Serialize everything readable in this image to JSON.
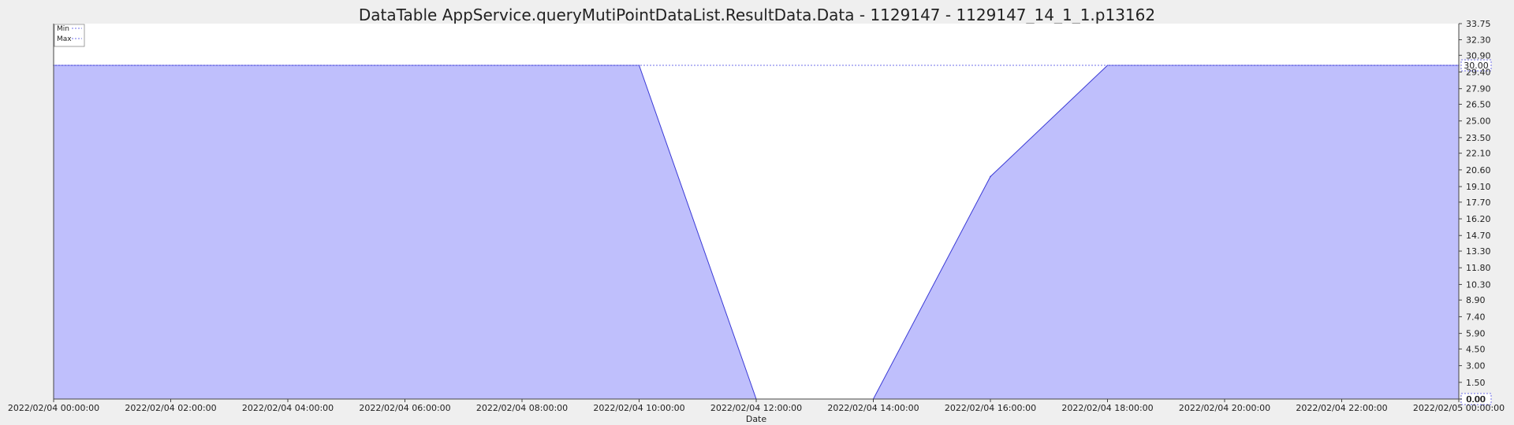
{
  "chart_data": {
    "type": "area",
    "title": "DataTable AppService.queryMutiPointDataList.ResultData.Data - 1129147 - 1129147_14_1_1.p13162",
    "xlabel": "Date",
    "ylabel": "",
    "x_hours": [
      0,
      10,
      12,
      14,
      16,
      18,
      24
    ],
    "values": [
      30.0,
      30.0,
      0.0,
      0.0,
      20.0,
      30.0,
      30.0
    ],
    "xlim_hours": [
      0,
      24
    ],
    "ylim": [
      0,
      33.75
    ],
    "x_tick_hours": [
      0,
      2,
      4,
      6,
      8,
      10,
      12,
      14,
      16,
      18,
      20,
      22,
      24
    ],
    "x_tick_labels": [
      "2022/02/04 00:00:00",
      "2022/02/04 02:00:00",
      "2022/02/04 04:00:00",
      "2022/02/04 06:00:00",
      "2022/02/04 08:00:00",
      "2022/02/04 10:00:00",
      "2022/02/04 12:00:00",
      "2022/02/04 14:00:00",
      "2022/02/04 16:00:00",
      "2022/02/04 18:00:00",
      "2022/02/04 20:00:00",
      "2022/02/04 22:00:00",
      "2022/02/05 00:00:00"
    ],
    "y_ticks": [
      0.0,
      1.5,
      3.0,
      4.5,
      5.9,
      7.4,
      8.9,
      10.3,
      11.8,
      13.3,
      14.7,
      16.2,
      17.7,
      19.1,
      20.6,
      22.1,
      23.5,
      25.0,
      26.5,
      27.9,
      29.4,
      30.9,
      32.3,
      33.75
    ],
    "y_tick_labels": [
      "0.00",
      "1.50",
      "3.00",
      "4.50",
      "5.90",
      "7.40",
      "8.90",
      "10.30",
      "11.80",
      "13.30",
      "14.70",
      "16.20",
      "17.70",
      "19.10",
      "20.60",
      "22.10",
      "23.50",
      "25.00",
      "26.50",
      "27.90",
      "29.40",
      "30.90",
      "32.30",
      "33.75"
    ],
    "legend": [
      {
        "name": "Min",
        "value": 0.0,
        "value_label": "0.00"
      },
      {
        "name": "Max",
        "value": 30.0,
        "value_label": "30.00"
      }
    ],
    "legend_position": "top-left",
    "grid": false,
    "colors": {
      "fill": "#bfbffc",
      "line": "#3a3ad6",
      "ref_line": "#6f6fe8",
      "background": "#efefef",
      "plot_background": "#ffffff"
    }
  }
}
